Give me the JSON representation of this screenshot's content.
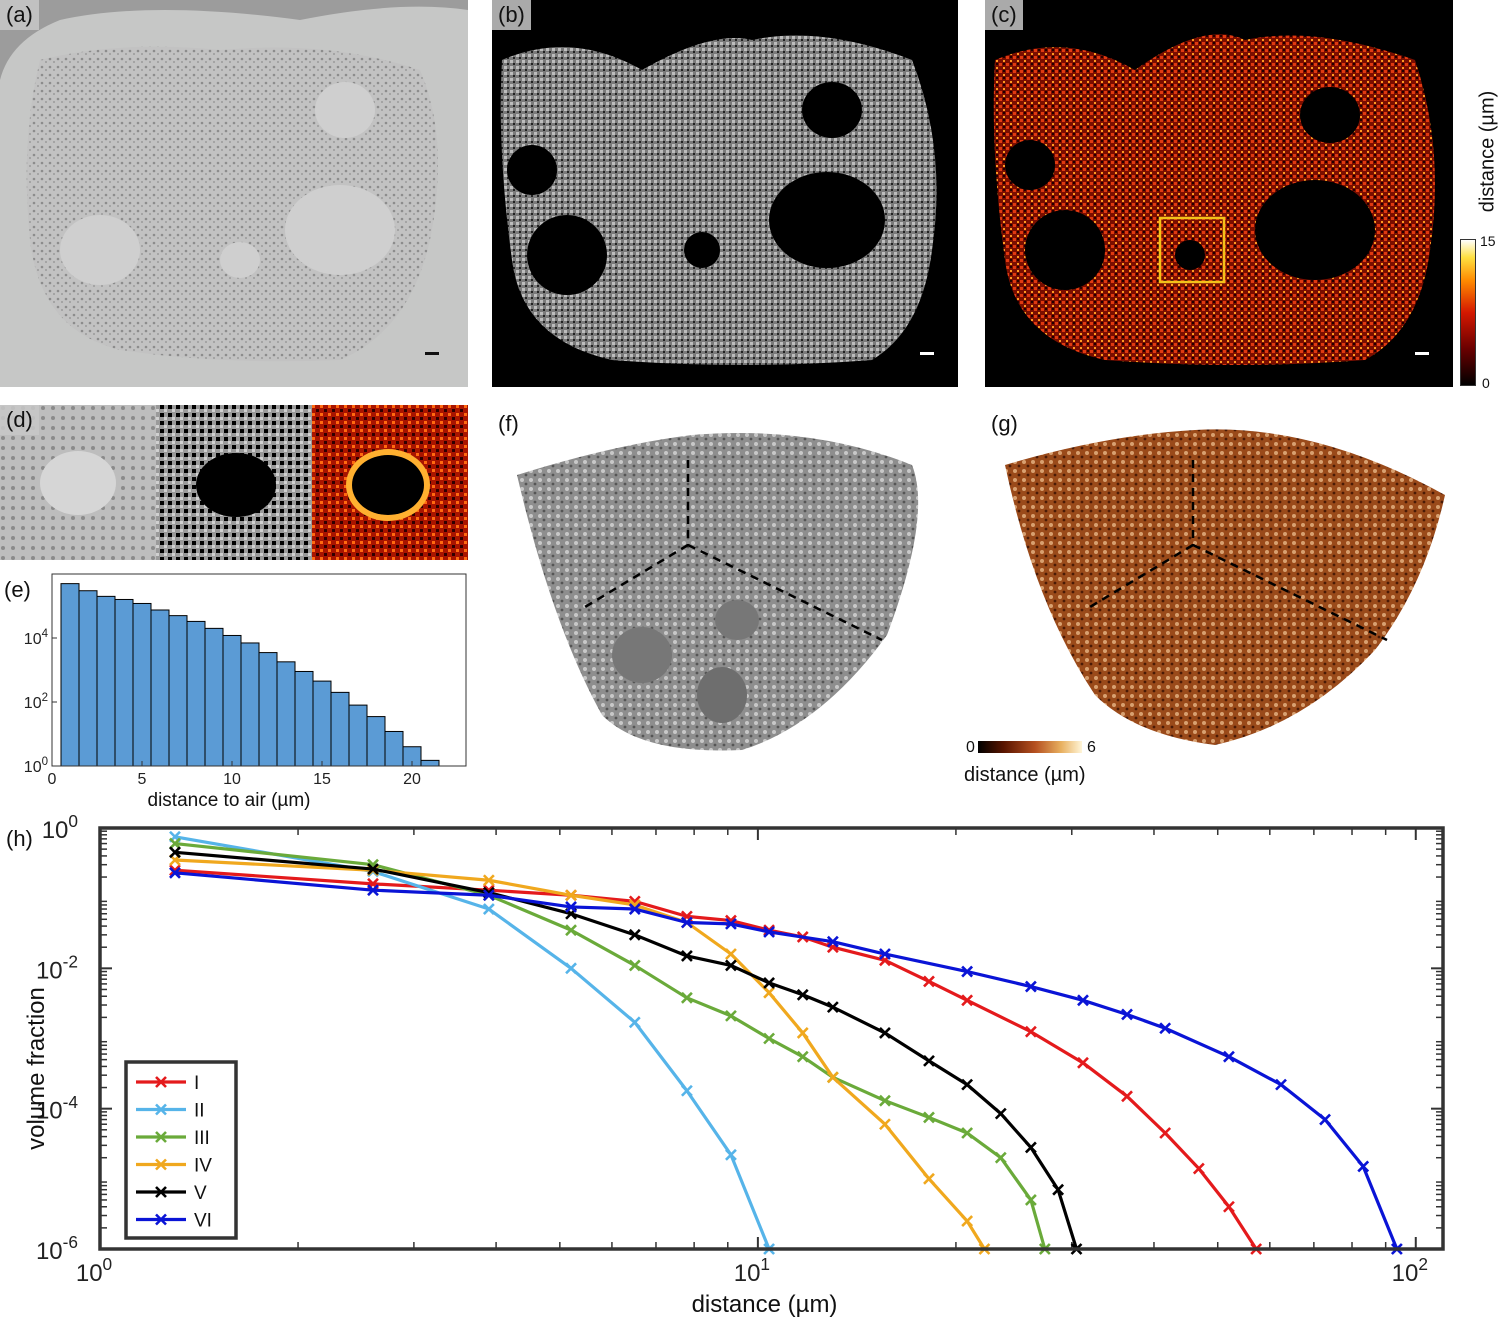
{
  "panels": {
    "a": {
      "label": "(a)"
    },
    "b": {
      "label": "(b)"
    },
    "c": {
      "label": "(c)",
      "colorbar": {
        "title": "distance (µm)",
        "max_label": "15",
        "min_label": "0"
      }
    },
    "d": {
      "label": "(d)"
    },
    "e": {
      "label": "(e)"
    },
    "f": {
      "label": "(f)"
    },
    "g": {
      "label": "(g)",
      "colorbar": {
        "min_label": "0",
        "max_label": "6",
        "title": "distance (µm)"
      }
    },
    "h": {
      "label": "(h)"
    }
  },
  "colors": {
    "hist_bar": "#5b9bd5",
    "I": "#e41a1c",
    "II": "#56b4e9",
    "III": "#6aaa3a",
    "IV": "#f0a81e",
    "V": "#000000",
    "VI": "#0a14d6"
  },
  "chart_data": [
    {
      "id": "e",
      "type": "bar",
      "xlabel": "distance to air (µm)",
      "ylabel": "",
      "yscale": "log",
      "xlim": [
        0,
        23
      ],
      "ylim": [
        1,
        1000000
      ],
      "xticks": [
        "0",
        "5",
        "10",
        "15",
        "20"
      ],
      "yticks": [
        {
          "base": "10",
          "exp": "0"
        },
        {
          "base": "10",
          "exp": "2"
        },
        {
          "base": "10",
          "exp": "4"
        }
      ],
      "x": [
        1,
        2,
        3,
        4,
        5,
        6,
        7,
        8,
        9,
        10,
        11,
        12,
        13,
        14,
        15,
        16,
        17,
        18,
        19,
        20,
        21
      ],
      "values": [
        500000,
        300000,
        200000,
        160000,
        120000,
        75000,
        50000,
        33000,
        20000,
        12000,
        7000,
        3500,
        1800,
        900,
        450,
        200,
        80,
        35,
        12,
        4,
        1.5
      ]
    },
    {
      "id": "h",
      "type": "line",
      "xlabel": "distance (µm)",
      "ylabel": "volume fraction",
      "xscale": "log",
      "yscale": "log",
      "xlim": [
        1,
        110
      ],
      "ylim": [
        1e-06,
        1
      ],
      "xticks": [
        {
          "base": "10",
          "exp": "0"
        },
        {
          "base": "10",
          "exp": "1"
        },
        {
          "base": "10",
          "exp": "2"
        }
      ],
      "yticks": [
        {
          "base": "10",
          "exp": "0"
        },
        {
          "base": "10",
          "exp": "-2"
        },
        {
          "base": "10",
          "exp": "-4"
        },
        {
          "base": "10",
          "exp": "-6"
        }
      ],
      "legend_position": "bottom-left",
      "series": [
        {
          "name": "I",
          "x": [
            1.3,
            2.6,
            3.9,
            5.2,
            6.5,
            7.8,
            9.1,
            10.4,
            11.7,
            13,
            15.6,
            18.2,
            20.8,
            26,
            31.2,
            36.4,
            41.6,
            46.8,
            52,
            57.2
          ],
          "values": [
            0.25,
            0.16,
            0.13,
            0.11,
            0.09,
            0.055,
            0.048,
            0.035,
            0.028,
            0.02,
            0.013,
            0.0065,
            0.0035,
            0.00125,
            0.00045,
            0.00015,
            4.5e-05,
            1.4e-05,
            4e-06,
            1e-06
          ]
        },
        {
          "name": "II",
          "x": [
            1.3,
            2.6,
            3.9,
            5.2,
            6.5,
            7.8,
            9.1,
            10.4
          ],
          "values": [
            0.75,
            0.24,
            0.07,
            0.01,
            0.0017,
            0.00018,
            2.2e-05,
            1e-06
          ]
        },
        {
          "name": "III",
          "x": [
            1.3,
            2.6,
            3.9,
            5.2,
            6.5,
            7.8,
            9.1,
            10.4,
            11.7,
            13,
            15.6,
            18.2,
            20.8,
            23.4,
            26,
            27.3
          ],
          "values": [
            0.6,
            0.3,
            0.11,
            0.035,
            0.011,
            0.0038,
            0.0021,
            0.001,
            0.00055,
            0.00028,
            0.00013,
            7.5e-05,
            4.5e-05,
            2e-05,
            5e-06,
            1e-06
          ]
        },
        {
          "name": "IV",
          "x": [
            1.3,
            2.6,
            3.9,
            5.2,
            6.5,
            7.8,
            9.1,
            10.4,
            11.7,
            13,
            15.6,
            18.2,
            20.8,
            22.1
          ],
          "values": [
            0.35,
            0.25,
            0.18,
            0.11,
            0.08,
            0.045,
            0.016,
            0.0045,
            0.0012,
            0.00028,
            6e-05,
            1e-05,
            2.5e-06,
            1e-06
          ]
        },
        {
          "name": "V",
          "x": [
            1.3,
            2.6,
            3.9,
            5.2,
            6.5,
            7.8,
            9.1,
            10.4,
            11.7,
            13,
            15.6,
            18.2,
            20.8,
            23.4,
            26,
            28.6,
            30.5
          ],
          "values": [
            0.45,
            0.26,
            0.12,
            0.06,
            0.03,
            0.015,
            0.011,
            0.0062,
            0.0042,
            0.0028,
            0.0012,
            0.00048,
            0.00022,
            8.5e-05,
            2.8e-05,
            7e-06,
            1e-06
          ]
        },
        {
          "name": "VI",
          "x": [
            1.3,
            2.6,
            3.9,
            5.2,
            6.5,
            7.8,
            9.1,
            10.4,
            13,
            15.6,
            20.8,
            26,
            31.2,
            36.4,
            41.6,
            52,
            62.4,
            72.8,
            83.2,
            93.6
          ],
          "values": [
            0.23,
            0.13,
            0.11,
            0.075,
            0.07,
            0.045,
            0.043,
            0.033,
            0.024,
            0.016,
            0.009,
            0.0055,
            0.0035,
            0.0022,
            0.0014,
            0.00055,
            0.00022,
            7e-05,
            1.5e-05,
            1e-06
          ]
        }
      ]
    }
  ]
}
